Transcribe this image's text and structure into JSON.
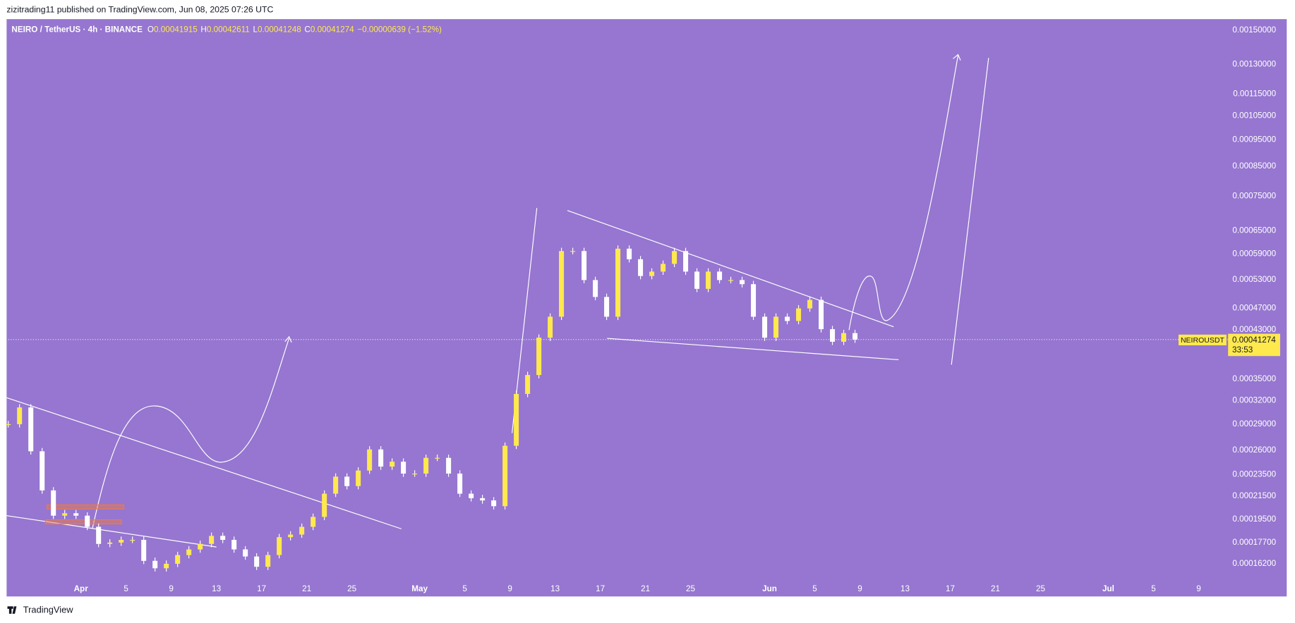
{
  "header": {
    "publisher": "zizitrading11 published on TradingView.com, Jun 08, 2025 07:26 UTC",
    "footer": "TradingView"
  },
  "chart_data": {
    "type": "candlestick",
    "title": "NEIRO / TetherUS · 4h · BINANCE",
    "ohlc": [
      {
        "label": "O",
        "value": 0.00041915
      },
      {
        "label": "H",
        "value": 0.00042611
      },
      {
        "label": "L",
        "value": 0.00041248
      },
      {
        "label": "C",
        "value": 0.00041274
      }
    ],
    "change": "−0.00000639 (−1.52%)",
    "series": [
      {
        "name": "NEIROUSDT",
        "color": "#ffe94d",
        "values": [
          0.00029,
          0.000311,
          0.000259,
          0.00022,
          0.000198,
          0.0002,
          0.000198,
          0.000189,
          0.000176,
          0.000177,
          0.000179,
          0.000179,
          0.000164,
          0.000159,
          0.000162,
          0.000168,
          0.000172,
          0.000176,
          0.000182,
          0.000179,
          0.000172,
          0.000167,
          0.00016,
          0.000168,
          0.000181,
          0.000183,
          0.000189,
          0.000197,
          0.000217,
          0.000233,
          0.000224,
          0.000239,
          0.000261,
          0.000243,
          0.000248,
          0.000236,
          0.000236,
          0.000252,
          0.000252,
          0.000236,
          0.000217,
          0.000213,
          0.000211,
          0.000206,
          0.000265,
          0.000329,
          0.000356,
          0.000416,
          0.000454,
          0.000597,
          0.000597,
          0.000529,
          0.000493,
          0.000454,
          0.000603,
          0.000577,
          0.000538,
          0.000548,
          0.000566,
          0.000597,
          0.000548,
          0.00051,
          0.000548,
          0.000529,
          0.000529,
          0.00052,
          0.000454,
          0.000416,
          0.000454,
          0.000446,
          0.00047,
          0.000487,
          0.000431,
          0.000409,
          0.000424,
          0.00041274
        ]
      }
    ],
    "last_price": 0.00041274,
    "countdown": "33:53",
    "log_scale": true,
    "ylim": [
      0.000153,
      0.00156
    ],
    "yticks": [
      {
        "value": 0.0015,
        "label": "0.00150000"
      },
      {
        "value": 0.0013,
        "label": "0.00130000"
      },
      {
        "value": 0.00115,
        "label": "0.00115000"
      },
      {
        "value": 0.00105,
        "label": "0.00105000"
      },
      {
        "value": 0.00095,
        "label": "0.00095000"
      },
      {
        "value": 0.00085,
        "label": "0.00085000"
      },
      {
        "value": 0.00075,
        "label": "0.00075000"
      },
      {
        "value": 0.00065,
        "label": "0.00065000"
      },
      {
        "value": 0.00059,
        "label": "0.00059000"
      },
      {
        "value": 0.00053,
        "label": "0.00053000"
      },
      {
        "value": 0.00047,
        "label": "0.00047000"
      },
      {
        "value": 0.00043,
        "label": "0.00043000"
      },
      {
        "value": 0.00035,
        "label": "0.00035000"
      },
      {
        "value": 0.00032,
        "label": "0.00032000"
      },
      {
        "value": 0.00029,
        "label": "0.00029000"
      },
      {
        "value": 0.00026,
        "label": "0.00026000"
      },
      {
        "value": 0.000235,
        "label": "0.00023500"
      },
      {
        "value": 0.000215,
        "label": "0.00021500"
      },
      {
        "value": 0.000195,
        "label": "0.00019500"
      },
      {
        "value": 0.000177,
        "label": "0.00017700"
      },
      {
        "value": 0.000162,
        "label": "0.00016200"
      }
    ],
    "x_labels": [
      "Apr",
      "5",
      "9",
      "13",
      "17",
      "21",
      "25",
      "May",
      "5",
      "9",
      "13",
      "17",
      "21",
      "25",
      "Jun",
      "5",
      "9",
      "13",
      "17",
      "21",
      "25",
      "Jul",
      "5",
      "9"
    ]
  }
}
